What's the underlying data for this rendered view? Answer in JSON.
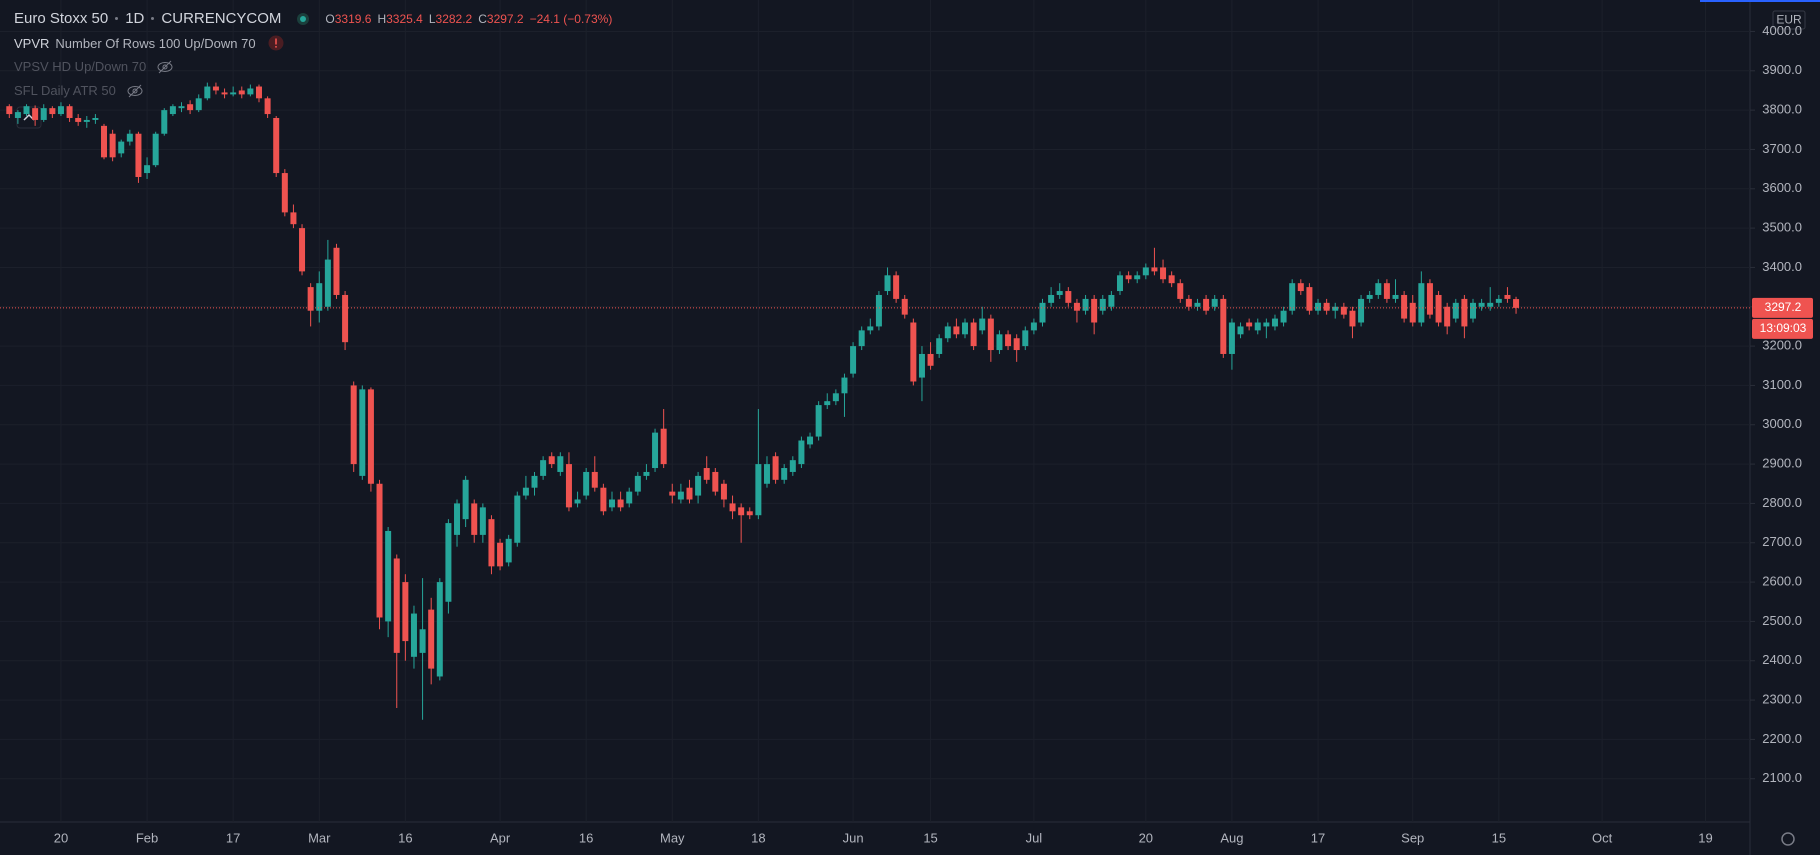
{
  "header": {
    "symbol": "Euro Stoxx 50",
    "interval": "1D",
    "source": "CURRENCYCOM",
    "ohlc_labels": [
      "O",
      "H",
      "L",
      "C"
    ],
    "change": "−24.1 (−0.73%)"
  },
  "indicators": [
    {
      "name": "VPVR",
      "params": "Number Of Rows 100 Up/Down 70"
    },
    {
      "name": "VPSV HD Up/Down 70"
    },
    {
      "name": "SFL Daily ATR 50"
    }
  ],
  "currency": "EUR",
  "countdown": "13:09:03",
  "chart_data": {
    "type": "candlestick",
    "categories": [
      null,
      null,
      null,
      null,
      null,
      null,
      "20",
      null,
      null,
      null,
      null,
      null,
      null,
      null,
      null,
      null,
      "Feb",
      null,
      null,
      null,
      null,
      null,
      null,
      null,
      null,
      null,
      "17",
      null,
      null,
      null,
      null,
      null,
      null,
      null,
      null,
      null,
      "Mar",
      null,
      null,
      null,
      null,
      null,
      null,
      null,
      null,
      null,
      "16",
      null,
      null,
      null,
      null,
      null,
      null,
      null,
      null,
      null,
      null,
      "Apr",
      null,
      null,
      null,
      null,
      null,
      null,
      null,
      null,
      null,
      "16",
      null,
      null,
      null,
      null,
      null,
      null,
      null,
      null,
      null,
      "May",
      null,
      null,
      null,
      null,
      null,
      null,
      null,
      null,
      null,
      "18",
      null,
      null,
      null,
      null,
      null,
      null,
      null,
      null,
      null,
      null,
      "Jun",
      null,
      null,
      null,
      null,
      null,
      null,
      null,
      null,
      "15",
      null,
      null,
      null,
      null,
      null,
      null,
      null,
      null,
      null,
      null,
      null,
      "Jul",
      null,
      null,
      null,
      null,
      null,
      null,
      null,
      null,
      null,
      null,
      null,
      null,
      "20",
      null,
      null,
      null,
      null,
      null,
      null,
      null,
      null,
      null,
      "Aug",
      null,
      null,
      null,
      null,
      null,
      null,
      null,
      null,
      null,
      "17",
      null,
      null,
      null,
      null,
      null,
      null,
      null,
      null,
      null,
      null,
      "Sep",
      null,
      null,
      null,
      null,
      null,
      null,
      null,
      null,
      null,
      "15",
      null,
      null,
      null,
      null,
      null,
      null,
      null,
      null,
      null,
      null,
      null,
      "Oct",
      null,
      null,
      null,
      null,
      null,
      null,
      null,
      null,
      null,
      null,
      null,
      "19",
      null,
      null,
      null,
      null,
      null
    ],
    "open": [
      3810,
      3780,
      3790,
      3805,
      3775,
      3805,
      3790,
      3810,
      3780,
      3770,
      3775,
      3760,
      3740,
      3690,
      3720,
      3740,
      3640,
      3660,
      3740,
      3790,
      3805,
      3815,
      3800,
      3830,
      3860,
      3845,
      3840,
      3850,
      3840,
      3860,
      3830,
      3780,
      3640,
      3540,
      3500,
      3350,
      3290,
      3300,
      3450,
      3330,
      3100,
      2870,
      3090,
      2850,
      2500,
      2660,
      2600,
      2410,
      2420,
      2530,
      2360,
      2550,
      2720,
      2760,
      2800,
      2720,
      2760,
      2700,
      2650,
      2700,
      2820,
      2840,
      2870,
      2920,
      2880,
      2900,
      2800,
      2820,
      2880,
      2840,
      2790,
      2810,
      2800,
      2830,
      2870,
      2890,
      2990,
      2830,
      2810,
      2840,
      2820,
      2890,
      2880,
      2850,
      2800,
      2790,
      2780,
      2770,
      2850,
      2920,
      2860,
      2880,
      2900,
      2950,
      2970,
      3050,
      3060,
      3080,
      3130,
      3200,
      3240,
      3250,
      3340,
      3380,
      3320,
      3260,
      3120,
      3180,
      3180,
      3220,
      3250,
      3230,
      3260,
      3240,
      3270,
      3190,
      3230,
      3220,
      3200,
      3240,
      3260,
      3310,
      3330,
      3340,
      3310,
      3290,
      3320,
      3290,
      3300,
      3340,
      3380,
      3370,
      3380,
      3400,
      3400,
      3380,
      3360,
      3320,
      3300,
      3320,
      3300,
      3320,
      3180,
      3230,
      3260,
      3240,
      3250,
      3250,
      3260,
      3290,
      3360,
      3350,
      3290,
      3310,
      3290,
      3300,
      3290,
      3260,
      3320,
      3330,
      3360,
      3320,
      3330,
      3310,
      3260,
      3360,
      3330,
      3300,
      3270,
      3320,
      3270,
      3300,
      3300,
      3310,
      3330,
      3319.6,
      null,
      null,
      null,
      null,
      null,
      null,
      null,
      null,
      null,
      null,
      null,
      null,
      null,
      null,
      null,
      null,
      null,
      null,
      null,
      null,
      null,
      null,
      null,
      null,
      null,
      null,
      null
    ],
    "high": [
      3815,
      3800,
      3815,
      3812,
      3815,
      3810,
      3820,
      3815,
      3790,
      3785,
      3790,
      3765,
      3750,
      3725,
      3750,
      3745,
      3680,
      3745,
      3805,
      3815,
      3820,
      3825,
      3840,
      3870,
      3870,
      3855,
      3860,
      3860,
      3865,
      3865,
      3835,
      3785,
      3650,
      3560,
      3510,
      3360,
      3390,
      3470,
      3460,
      3340,
      3110,
      3100,
      3095,
      2860,
      2740,
      2670,
      2620,
      2540,
      2610,
      2560,
      2610,
      2760,
      2810,
      2870,
      2810,
      2800,
      2770,
      2710,
      2720,
      2830,
      2870,
      2880,
      2920,
      2930,
      2930,
      2930,
      2830,
      2890,
      2920,
      2850,
      2830,
      2830,
      2840,
      2880,
      2900,
      2990,
      3040,
      2850,
      2850,
      2860,
      2880,
      2920,
      2890,
      2860,
      2820,
      2800,
      2790,
      3040,
      2920,
      2930,
      2900,
      2920,
      2970,
      2980,
      3060,
      3080,
      3090,
      3130,
      3210,
      3250,
      3270,
      3340,
      3400,
      3390,
      3330,
      3270,
      3200,
      3210,
      3230,
      3260,
      3270,
      3270,
      3270,
      3300,
      3280,
      3240,
      3240,
      3230,
      3250,
      3270,
      3320,
      3350,
      3360,
      3350,
      3320,
      3330,
      3330,
      3330,
      3340,
      3390,
      3390,
      3390,
      3410,
      3450,
      3420,
      3390,
      3370,
      3330,
      3320,
      3330,
      3330,
      3330,
      3270,
      3260,
      3270,
      3270,
      3270,
      3280,
      3300,
      3370,
      3370,
      3360,
      3320,
      3320,
      3310,
      3310,
      3300,
      3330,
      3340,
      3370,
      3370,
      3370,
      3340,
      3330,
      3390,
      3370,
      3340,
      3310,
      3320,
      3330,
      3320,
      3320,
      3350,
      3330,
      3350,
      3325.4,
      null,
      null,
      null,
      null,
      null,
      null,
      null,
      null,
      null,
      null,
      null,
      null,
      null,
      null,
      null,
      null,
      null,
      null,
      null,
      null,
      null,
      null,
      null,
      null,
      null,
      null,
      null
    ],
    "low": [
      3780,
      3765,
      3785,
      3760,
      3770,
      3780,
      3785,
      3770,
      3760,
      3755,
      3765,
      3675,
      3670,
      3680,
      3710,
      3615,
      3625,
      3655,
      3735,
      3785,
      3795,
      3790,
      3795,
      3825,
      3840,
      3830,
      3835,
      3830,
      3835,
      3820,
      3780,
      3630,
      3530,
      3500,
      3380,
      3250,
      3260,
      3290,
      3320,
      3190,
      2880,
      2860,
      2830,
      2480,
      2460,
      2280,
      2400,
      2380,
      2250,
      2340,
      2350,
      2520,
      2690,
      2740,
      2700,
      2700,
      2620,
      2630,
      2640,
      2690,
      2810,
      2820,
      2860,
      2890,
      2870,
      2780,
      2790,
      2810,
      2830,
      2770,
      2780,
      2780,
      2790,
      2820,
      2860,
      2880,
      2890,
      2800,
      2800,
      2800,
      2800,
      2850,
      2820,
      2790,
      2760,
      2700,
      2760,
      2760,
      2840,
      2850,
      2850,
      2870,
      2890,
      2940,
      2960,
      3040,
      3050,
      3020,
      3120,
      3190,
      3230,
      3240,
      3330,
      3310,
      3270,
      3100,
      3060,
      3140,
      3170,
      3210,
      3220,
      3220,
      3190,
      3230,
      3160,
      3180,
      3190,
      3160,
      3190,
      3230,
      3250,
      3300,
      3320,
      3300,
      3260,
      3280,
      3230,
      3280,
      3290,
      3330,
      3360,
      3360,
      3370,
      3380,
      3360,
      3350,
      3310,
      3290,
      3290,
      3280,
      3290,
      3170,
      3140,
      3220,
      3240,
      3230,
      3220,
      3240,
      3250,
      3280,
      3330,
      3280,
      3280,
      3280,
      3270,
      3270,
      3220,
      3250,
      3310,
      3320,
      3310,
      3310,
      3260,
      3250,
      3250,
      3270,
      3250,
      3230,
      3260,
      3220,
      3260,
      3290,
      3290,
      3300,
      3310,
      3282.2,
      null,
      null,
      null,
      null,
      null,
      null,
      null,
      null,
      null,
      null,
      null,
      null,
      null,
      null,
      null,
      null,
      null,
      null,
      null,
      null,
      null,
      null,
      null,
      null,
      null,
      null,
      null
    ],
    "close": [
      3790,
      3795,
      3810,
      3775,
      3805,
      3790,
      3810,
      3780,
      3770,
      3775,
      3780,
      3680,
      3680,
      3720,
      3740,
      3630,
      3660,
      3740,
      3800,
      3810,
      3810,
      3800,
      3830,
      3860,
      3850,
      3840,
      3845,
      3840,
      3855,
      3830,
      3790,
      3640,
      3540,
      3510,
      3390,
      3290,
      3360,
      3420,
      3330,
      3210,
      2900,
      3090,
      2850,
      2510,
      2730,
      2420,
      2450,
      2520,
      2480,
      2380,
      2600,
      2750,
      2800,
      2860,
      2720,
      2790,
      2640,
      2640,
      2710,
      2820,
      2840,
      2870,
      2910,
      2900,
      2920,
      2790,
      2810,
      2880,
      2840,
      2780,
      2810,
      2790,
      2830,
      2870,
      2880,
      2980,
      2900,
      2820,
      2830,
      2810,
      2870,
      2860,
      2830,
      2810,
      2780,
      2770,
      2770,
      2900,
      2900,
      2860,
      2890,
      2910,
      2960,
      2970,
      3050,
      3060,
      3080,
      3120,
      3200,
      3240,
      3250,
      3330,
      3380,
      3320,
      3280,
      3110,
      3180,
      3150,
      3220,
      3250,
      3230,
      3260,
      3200,
      3270,
      3190,
      3230,
      3200,
      3190,
      3240,
      3260,
      3310,
      3330,
      3340,
      3310,
      3290,
      3320,
      3260,
      3320,
      3330,
      3380,
      3370,
      3380,
      3400,
      3390,
      3370,
      3360,
      3320,
      3300,
      3310,
      3290,
      3320,
      3180,
      3260,
      3250,
      3250,
      3260,
      3260,
      3270,
      3290,
      3360,
      3340,
      3290,
      3310,
      3290,
      3300,
      3280,
      3250,
      3320,
      3330,
      3360,
      3320,
      3330,
      3270,
      3260,
      3360,
      3280,
      3260,
      3250,
      3310,
      3250,
      3310,
      3310,
      3310,
      3320,
      3320,
      3297.2,
      null,
      null,
      null,
      null,
      null,
      null,
      null,
      null,
      null,
      null,
      null,
      null,
      null,
      null,
      null,
      null,
      null,
      null,
      null,
      null,
      null,
      null,
      null,
      null,
      null,
      null,
      null
    ],
    "up_color": "#26a69a",
    "down_color": "#ef5350",
    "ylim": [
      1990,
      4080
    ],
    "yticks": [
      {
        "value": 2100,
        "label": "2100.0"
      },
      {
        "value": 2200,
        "label": "2200.0"
      },
      {
        "value": 2300,
        "label": "2300.0"
      },
      {
        "value": 2400,
        "label": "2400.0"
      },
      {
        "value": 2500,
        "label": "2500.0"
      },
      {
        "value": 2600,
        "label": "2600.0"
      },
      {
        "value": 2700,
        "label": "2700.0"
      },
      {
        "value": 2800,
        "label": "2800.0"
      },
      {
        "value": 2900,
        "label": "2900.0"
      },
      {
        "value": 3000,
        "label": "3000.0"
      },
      {
        "value": 3100,
        "label": "3100.0"
      },
      {
        "value": 3200,
        "label": "3200.0"
      },
      {
        "value": 3300,
        "label": "3300.0"
      },
      {
        "value": 3400,
        "label": "3400.0"
      },
      {
        "value": 3500,
        "label": "3500.0"
      },
      {
        "value": 3600,
        "label": "3600.0"
      },
      {
        "value": 3700,
        "label": "3700.0"
      },
      {
        "value": 3800,
        "label": "3800.0"
      },
      {
        "value": 3900,
        "label": "3900.0"
      },
      {
        "value": 4000,
        "label": "4000.0"
      }
    ],
    "grid": true
  }
}
